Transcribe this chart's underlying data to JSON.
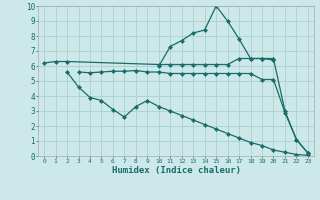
{
  "xlabel": "Humidex (Indice chaleur)",
  "bg_color": "#cce8e8",
  "grid_color": "#aad0d0",
  "line_color": "#1a6b6b",
  "xlim": [
    -0.5,
    23.5
  ],
  "ylim": [
    0,
    10
  ],
  "xtick_labels": [
    "0",
    "1",
    "2",
    "3",
    "4",
    "5",
    "6",
    "7",
    "8",
    "9",
    "10",
    "11",
    "12",
    "13",
    "14",
    "15",
    "16",
    "17",
    "18",
    "19",
    "20",
    "21",
    "22",
    "23"
  ],
  "ytick_labels": [
    "0",
    "1",
    "2",
    "3",
    "4",
    "5",
    "6",
    "7",
    "8",
    "9",
    "10"
  ],
  "line1_x": [
    0,
    1,
    2,
    10,
    11,
    12,
    13,
    14,
    15,
    16,
    17,
    18,
    19,
    20
  ],
  "line1_y": [
    6.2,
    6.3,
    6.3,
    6.1,
    6.1,
    6.1,
    6.1,
    6.1,
    6.1,
    6.1,
    6.5,
    6.5,
    6.5,
    6.4
  ],
  "line2_x": [
    3,
    4,
    5,
    6,
    7,
    8,
    9,
    10,
    11,
    12,
    13,
    14,
    15,
    16,
    17,
    18,
    19,
    20,
    21,
    22,
    23
  ],
  "line2_y": [
    5.6,
    5.55,
    5.6,
    5.65,
    5.65,
    5.7,
    5.6,
    5.6,
    5.5,
    5.5,
    5.5,
    5.5,
    5.5,
    5.5,
    5.5,
    5.5,
    5.1,
    5.1,
    2.9,
    1.1,
    0.2
  ],
  "line3_x": [
    2,
    3,
    4,
    5,
    6,
    7,
    8,
    9,
    10,
    11,
    12,
    13,
    14,
    15,
    16,
    17,
    18,
    19,
    20,
    21,
    22,
    23
  ],
  "line3_y": [
    5.6,
    4.6,
    3.9,
    3.7,
    3.1,
    2.6,
    3.3,
    3.7,
    3.3,
    3.0,
    2.7,
    2.4,
    2.1,
    1.8,
    1.5,
    1.2,
    0.9,
    0.7,
    0.4,
    0.25,
    0.1,
    0.05
  ],
  "line4_x": [
    10,
    11,
    12,
    13,
    14,
    15,
    16,
    17,
    18,
    19,
    20,
    21,
    22,
    23
  ],
  "line4_y": [
    6.0,
    7.3,
    7.7,
    8.2,
    8.4,
    10.0,
    9.0,
    7.8,
    6.5,
    6.5,
    6.5,
    3.0,
    1.1,
    0.2
  ]
}
